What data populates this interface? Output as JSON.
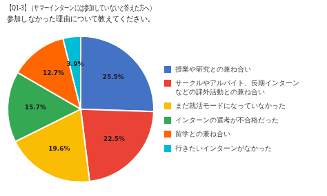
{
  "chart_data": {
    "type": "pie",
    "title": "【Q1-3】（サマーインターンには参加していないと答えた方へ）",
    "subtitle": "参加しなかった理由について教えてください。",
    "categories": [
      "授業や研究との兼ね合い",
      "サークルやアルバイト、長期インターン\nなどの課外活動との兼ね合い",
      "まだ就活モードになっていなかった",
      "インターンの選考が不合格だった",
      "留学との兼ね合い",
      "行きたいインターンがなかった"
    ],
    "values": [
      25.5,
      22.5,
      19.6,
      15.7,
      12.7,
      3.9
    ],
    "colors": [
      "#4472C4",
      "#EA4335",
      "#FBBC04",
      "#34A853",
      "#FF6600",
      "#00BCD4"
    ],
    "data_labels": true,
    "value_labels": [
      "25.5%",
      "22.5%",
      "19.6%",
      "15.7%",
      "12.7%",
      "3.9%"
    ],
    "legend": "right"
  }
}
